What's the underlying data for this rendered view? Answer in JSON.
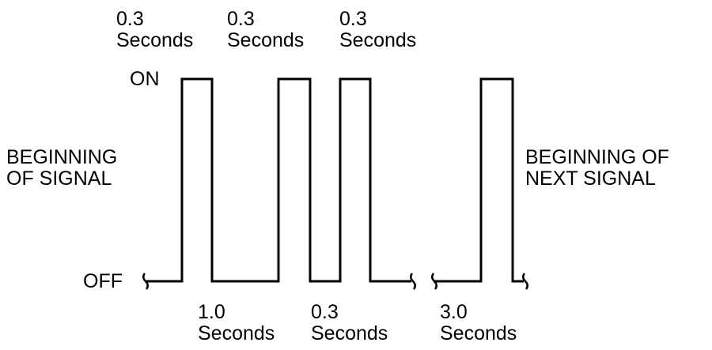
{
  "diagram": {
    "states": {
      "on": "ON",
      "off": "OFF"
    },
    "start_label": {
      "line1": "BEGINNING",
      "line2": "OF SIGNAL"
    },
    "end_label": {
      "line1": "BEGINNING OF",
      "line2": "NEXT SIGNAL"
    },
    "on_durations": [
      {
        "value": "0.3",
        "unit": "Seconds"
      },
      {
        "value": "0.3",
        "unit": "Seconds"
      },
      {
        "value": "0.3",
        "unit": "Seconds"
      }
    ],
    "off_durations": [
      {
        "value": "1.0",
        "unit": "Seconds"
      },
      {
        "value": "0.3",
        "unit": "Seconds"
      },
      {
        "value": "3.0",
        "unit": "Seconds"
      }
    ]
  }
}
